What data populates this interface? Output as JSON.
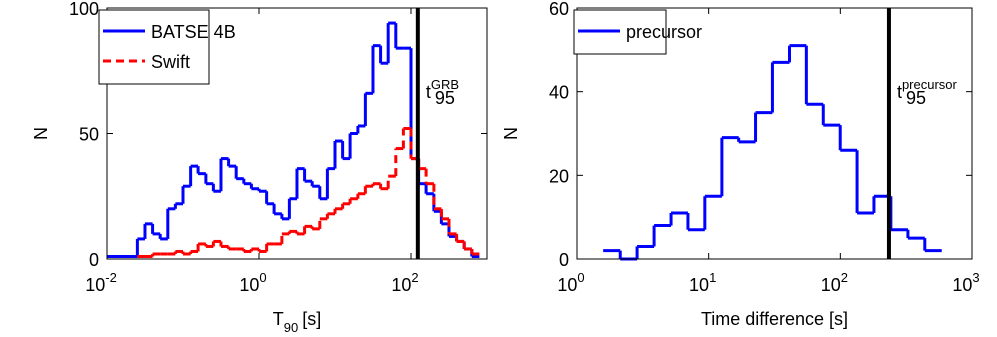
{
  "chart_data": [
    {
      "type": "step-histogram",
      "xlabel": {
        "text": "T",
        "sub": "90",
        "rest": "[s]"
      },
      "ylabel": "N",
      "xscale": "log",
      "xlim": [
        0.01,
        1000
      ],
      "ylim": [
        0,
        100
      ],
      "xticks": [
        {
          "value": 0.01,
          "label": "10",
          "exponent": "-2"
        },
        {
          "value": 1,
          "label": "10",
          "exponent": "0"
        },
        {
          "value": 100,
          "label": "10",
          "exponent": "2"
        }
      ],
      "yticks": [
        0,
        50,
        100
      ],
      "bins": [
        0.01,
        0.0251,
        0.0316,
        0.0398,
        0.0501,
        0.0631,
        0.0794,
        0.1,
        0.126,
        0.158,
        0.2,
        0.251,
        0.316,
        0.398,
        0.501,
        0.631,
        0.794,
        1,
        1.26,
        1.58,
        2,
        2.51,
        3.16,
        3.98,
        5.01,
        6.31,
        7.94,
        10,
        12.6,
        15.8,
        20,
        25.1,
        31.6,
        39.8,
        50.1,
        63.1,
        79.4,
        100,
        126,
        158,
        200,
        251,
        316,
        398,
        501,
        631,
        794
      ],
      "series": [
        {
          "name": "BATSE 4B",
          "color": "#0000ff",
          "dash": false,
          "values": [
            1,
            8,
            14,
            10,
            8,
            20,
            22,
            29,
            37,
            34,
            30,
            27,
            40,
            37,
            32,
            30,
            28,
            27,
            22,
            18,
            16,
            24,
            36,
            31,
            29,
            24,
            36,
            47,
            40,
            50,
            53,
            66,
            85,
            78,
            94,
            84,
            84,
            40,
            30,
            26,
            19,
            14,
            9,
            7,
            4,
            1
          ]
        },
        {
          "name": "Swift",
          "color": "#ff0000",
          "dash": true,
          "values": [
            null,
            1,
            1,
            2,
            2,
            2,
            3,
            2,
            3,
            6,
            5,
            7,
            5,
            4,
            4,
            3,
            4,
            3,
            6,
            6,
            10,
            11,
            10,
            13,
            12,
            16,
            18,
            20,
            22,
            24,
            26,
            29,
            30,
            28,
            33,
            44,
            52,
            40,
            36,
            30,
            20,
            16,
            10,
            7,
            4,
            2
          ]
        }
      ],
      "vline": 123,
      "annotation": {
        "text": "t",
        "sub": "95",
        "sup": "GRB"
      },
      "legend": "upper left"
    },
    {
      "type": "step-histogram",
      "xlabel": {
        "text": "Time difference [s]"
      },
      "ylabel": "N",
      "xscale": "log",
      "xlim": [
        1,
        1000
      ],
      "ylim": [
        0,
        60
      ],
      "xticks": [
        {
          "value": 1,
          "label": "10",
          "exponent": "0"
        },
        {
          "value": 10,
          "label": "10",
          "exponent": "1"
        },
        {
          "value": 100,
          "label": "10",
          "exponent": "2"
        },
        {
          "value": 1000,
          "label": "10",
          "exponent": "3"
        }
      ],
      "yticks": [
        0,
        20,
        40,
        60
      ],
      "bins": [
        1.58,
        2.13,
        2.86,
        3.85,
        5.18,
        6.96,
        9.35,
        12.6,
        16.9,
        22.7,
        30.5,
        41.1,
        55.2,
        74.2,
        99.8,
        134,
        180,
        242,
        326,
        438,
        589
      ],
      "series": [
        {
          "name": "precursor",
          "color": "#0000ff",
          "dash": false,
          "values": [
            2,
            0,
            3,
            8,
            11,
            7,
            15,
            29,
            28,
            35,
            47,
            51,
            37,
            32,
            26,
            11,
            15,
            7,
            5,
            2
          ]
        }
      ],
      "vline": 234,
      "annotation": {
        "text": "t",
        "sub": "95",
        "sup": "precursor"
      },
      "legend": "upper left"
    }
  ]
}
